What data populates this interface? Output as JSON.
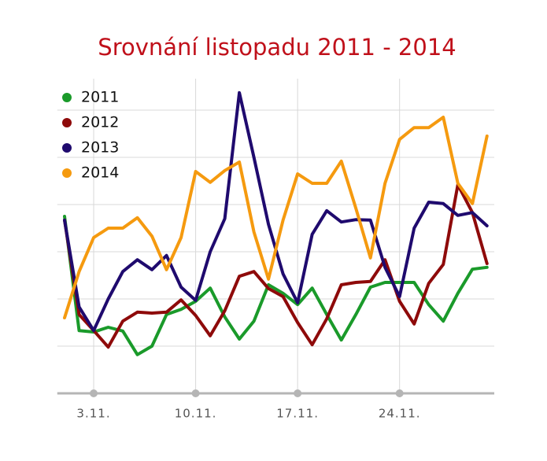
{
  "chart_data": {
    "type": "line",
    "title": "Srovnání listopadu 2011 - 2014",
    "x": [
      1,
      2,
      3,
      4,
      5,
      6,
      7,
      8,
      9,
      10,
      11,
      12,
      13,
      14,
      15,
      16,
      17,
      18,
      19,
      20,
      21,
      22,
      23,
      24,
      25,
      26,
      27,
      28,
      29,
      30
    ],
    "xlim": [
      0.5,
      30.5
    ],
    "xticks": [
      {
        "value": 3,
        "label": "3.11."
      },
      {
        "value": 10,
        "label": "10.11."
      },
      {
        "value": 17,
        "label": "17.11."
      },
      {
        "value": 24,
        "label": "24.11."
      }
    ],
    "ylim": [
      0,
      7
    ],
    "yticks": [
      1,
      2,
      3,
      4,
      5,
      6
    ],
    "grid": true,
    "legend": "upper left",
    "series": [
      {
        "name": "2011",
        "color": "#1a9a2a",
        "values": [
          3.75,
          1.33,
          1.3,
          1.4,
          1.32,
          0.82,
          1.0,
          1.67,
          1.78,
          1.95,
          2.23,
          1.62,
          1.15,
          1.53,
          2.3,
          2.12,
          1.88,
          2.23,
          1.67,
          1.13,
          1.67,
          2.25,
          2.35,
          2.35,
          2.35,
          1.88,
          1.53,
          2.12,
          2.63,
          2.67
        ]
      },
      {
        "name": "2012",
        "color": "#8e0a0a",
        "values": [
          3.67,
          1.67,
          1.33,
          0.98,
          1.53,
          1.72,
          1.7,
          1.72,
          1.98,
          1.65,
          1.22,
          1.75,
          2.48,
          2.58,
          2.22,
          2.05,
          1.5,
          1.03,
          1.58,
          2.3,
          2.35,
          2.37,
          2.83,
          1.95,
          1.47,
          2.33,
          2.73,
          4.42,
          3.83,
          2.75
        ]
      },
      {
        "name": "2013",
        "color": "#1f0a6e",
        "values": [
          3.67,
          1.83,
          1.33,
          2.0,
          2.58,
          2.83,
          2.62,
          2.92,
          2.25,
          1.97,
          3.0,
          3.7,
          6.37,
          5.0,
          3.58,
          2.53,
          1.92,
          3.37,
          3.87,
          3.63,
          3.68,
          3.67,
          2.67,
          2.05,
          3.5,
          4.05,
          4.02,
          3.77,
          3.83,
          3.55
        ]
      },
      {
        "name": "2014",
        "color": "#f59a0f",
        "values": [
          1.6,
          2.58,
          3.3,
          3.5,
          3.5,
          3.72,
          3.33,
          2.62,
          3.3,
          4.7,
          4.47,
          4.72,
          4.9,
          3.42,
          2.42,
          3.67,
          4.65,
          4.45,
          4.45,
          4.92,
          3.92,
          2.87,
          4.45,
          5.38,
          5.63,
          5.63,
          5.85,
          4.45,
          4.02,
          5.45
        ]
      }
    ]
  }
}
